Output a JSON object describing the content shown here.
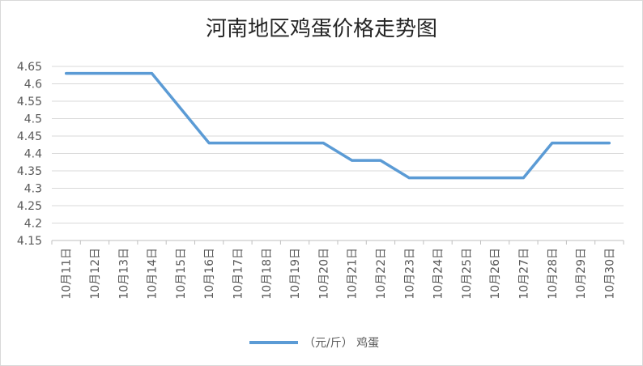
{
  "chart_data": {
    "type": "line",
    "title": "河南地区鸡蛋价格走势图",
    "xlabel": "",
    "ylabel": "",
    "categories": [
      "10月11日",
      "10月12日",
      "10月13日",
      "10月14日",
      "10月15日",
      "10月16日",
      "10月17日",
      "10月18日",
      "10月19日",
      "10月20日",
      "10月21日",
      "10月22日",
      "10月23日",
      "10月24日",
      "10月25日",
      "10月26日",
      "10月27日",
      "10月28日",
      "10月29日",
      "10月30日"
    ],
    "series": [
      {
        "name": "（元/斤） 鸡蛋",
        "color": "#5b9bd5",
        "values": [
          4.63,
          4.63,
          4.63,
          4.63,
          4.53,
          4.43,
          4.43,
          4.43,
          4.43,
          4.43,
          4.38,
          4.38,
          4.33,
          4.33,
          4.33,
          4.33,
          4.33,
          4.43,
          4.43,
          4.43
        ]
      }
    ],
    "ylim": [
      4.15,
      4.65
    ],
    "yticks": [
      "4.15",
      "4.2",
      "4.25",
      "4.3",
      "4.35",
      "4.4",
      "4.45",
      "4.5",
      "4.55",
      "4.6",
      "4.65"
    ],
    "grid": true,
    "legend": "bottom"
  },
  "colors": {
    "grid": "#d9d9d9",
    "axis": "#bfbfbf"
  }
}
